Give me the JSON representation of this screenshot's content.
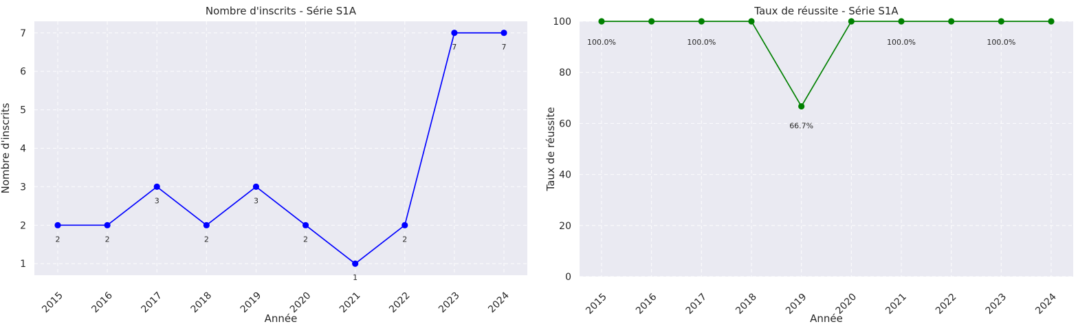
{
  "chart_data": [
    {
      "type": "line",
      "title": "Nombre d'inscrits - Série S1A",
      "xlabel": "Année",
      "ylabel": "Nombre d'inscrits",
      "x": [
        "2015",
        "2016",
        "2017",
        "2018",
        "2019",
        "2020",
        "2021",
        "2022",
        "2023",
        "2024"
      ],
      "series": [
        {
          "values": [
            2,
            2,
            3,
            2,
            3,
            2,
            1,
            2,
            7,
            7
          ],
          "color": "#0000ff"
        }
      ],
      "data_labels": [
        "2",
        "2",
        "3",
        "2",
        "3",
        "2",
        "1",
        "2",
        "7",
        "7"
      ],
      "yticks": [
        "1",
        "2",
        "3",
        "4",
        "5",
        "6",
        "7"
      ],
      "ylim": [
        0.7,
        7.3
      ],
      "grid": true
    },
    {
      "type": "line",
      "title": "Taux de réussite - Série S1A",
      "xlabel": "Année",
      "ylabel": "Taux de réussite",
      "x": [
        "2015",
        "2016",
        "2017",
        "2018",
        "2019",
        "2020",
        "2021",
        "2022",
        "2023",
        "2024"
      ],
      "series": [
        {
          "values": [
            100,
            100,
            100,
            100,
            66.7,
            100,
            100,
            100,
            100,
            100
          ],
          "color": "#008000"
        }
      ],
      "data_labels": [
        "100.0%",
        "",
        "100.0%",
        "",
        "66.7%",
        "",
        "100.0%",
        "",
        "100.0%",
        ""
      ],
      "yticks": [
        "0",
        "20",
        "40",
        "60",
        "80",
        "100"
      ],
      "ylim": [
        0,
        100
      ],
      "grid": true
    }
  ]
}
